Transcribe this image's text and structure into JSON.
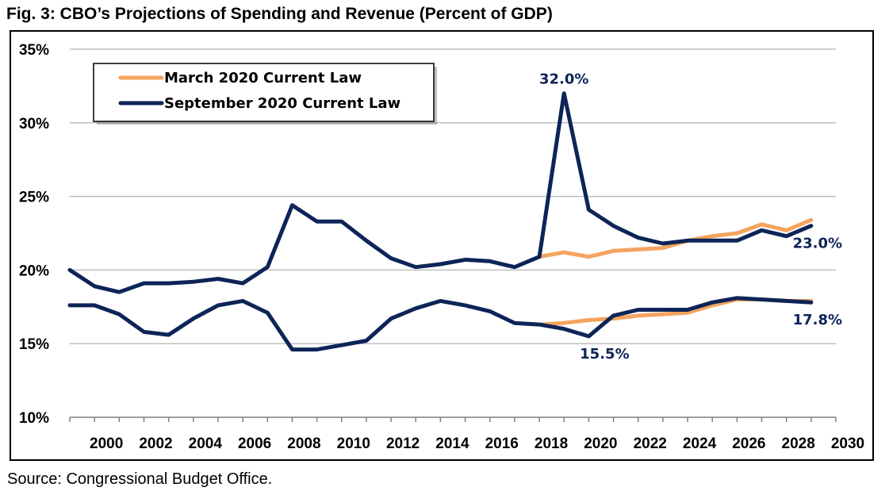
{
  "title": "Fig. 3: CBO’s Projections of Spending and Revenue (Percent of GDP)",
  "source": "Source: Congressional Budget Office.",
  "chart_data": {
    "type": "line",
    "ylim": [
      10,
      35
    ],
    "yticks": [
      10,
      15,
      20,
      25,
      30,
      35
    ],
    "ytick_labels": [
      "10%",
      "15%",
      "20%",
      "25%",
      "30%",
      "35%"
    ],
    "xlim": [
      1999,
      2030
    ],
    "xticks": [
      2000,
      2002,
      2004,
      2006,
      2008,
      2010,
      2012,
      2014,
      2016,
      2018,
      2020,
      2022,
      2024,
      2026,
      2028,
      2030
    ],
    "xtick_labels": [
      "2000",
      "2002",
      "2004",
      "2006",
      "2008",
      "2010",
      "2012",
      "2014",
      "2016",
      "2018",
      "2020",
      "2022",
      "2024",
      "2026",
      "2028",
      "2030"
    ],
    "grid": true,
    "legend_position": "top-left",
    "series": [
      {
        "name": "March 2020 Current Law",
        "color": "#f4a460",
        "lines": [
          {
            "x": [
              2018,
              2019,
              2020,
              2021,
              2022,
              2023,
              2024,
              2025,
              2026,
              2027,
              2028,
              2029
            ],
            "y": [
              20.9,
              21.2,
              20.9,
              21.3,
              21.4,
              21.5,
              22.0,
              22.3,
              22.5,
              23.1,
              22.7,
              23.4
            ]
          },
          {
            "x": [
              2018,
              2019,
              2020,
              2021,
              2022,
              2023,
              2024,
              2025,
              2026,
              2027,
              2028,
              2029
            ],
            "y": [
              16.3,
              16.4,
              16.6,
              16.7,
              16.9,
              17.0,
              17.1,
              17.6,
              18.0,
              18.0,
              17.9,
              17.9
            ]
          }
        ]
      },
      {
        "name": "September 2020 Current Law",
        "color": "#0d2457",
        "lines": [
          {
            "x": [
              1999,
              2000,
              2001,
              2002,
              2003,
              2004,
              2005,
              2006,
              2007,
              2008,
              2009,
              2010,
              2011,
              2012,
              2013,
              2014,
              2015,
              2016,
              2017,
              2018,
              2019,
              2020,
              2021,
              2022,
              2023,
              2024,
              2025,
              2026,
              2027,
              2028,
              2029
            ],
            "y": [
              20.0,
              18.9,
              18.5,
              19.1,
              19.1,
              19.2,
              19.4,
              19.1,
              20.2,
              24.4,
              23.3,
              23.3,
              22.0,
              20.8,
              20.2,
              20.4,
              20.7,
              20.6,
              20.2,
              20.9,
              32.0,
              24.1,
              23.0,
              22.2,
              21.8,
              22.0,
              22.0,
              22.0,
              22.7,
              22.3,
              23.0
            ]
          },
          {
            "x": [
              1999,
              2000,
              2001,
              2002,
              2003,
              2004,
              2005,
              2006,
              2007,
              2008,
              2009,
              2010,
              2011,
              2012,
              2013,
              2014,
              2015,
              2016,
              2017,
              2018,
              2019,
              2020,
              2021,
              2022,
              2023,
              2024,
              2025,
              2026,
              2027,
              2028,
              2029
            ],
            "y": [
              17.6,
              17.6,
              17.0,
              15.8,
              15.6,
              16.7,
              17.6,
              17.9,
              17.1,
              14.6,
              14.6,
              14.9,
              15.2,
              16.7,
              17.4,
              17.9,
              17.6,
              17.2,
              16.4,
              16.3,
              16.0,
              15.5,
              16.9,
              17.3,
              17.3,
              17.3,
              17.8,
              18.1,
              18.0,
              17.9,
              17.8
            ]
          }
        ]
      }
    ],
    "annotations": [
      {
        "text": "32.0%",
        "x": 2019,
        "y": 32.0,
        "anchor": "above"
      },
      {
        "text": "23.0%",
        "x": 2029,
        "y": 23.0,
        "anchor": "below"
      },
      {
        "text": "15.5%",
        "x": 2020,
        "y": 15.5,
        "anchor": "below"
      },
      {
        "text": "17.8%",
        "x": 2029,
        "y": 17.8,
        "anchor": "below"
      }
    ]
  }
}
